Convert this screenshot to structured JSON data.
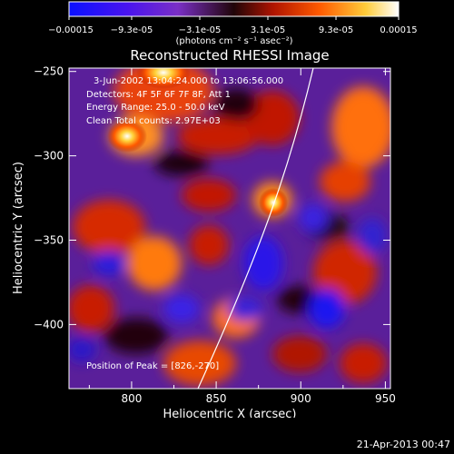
{
  "colorbar": {
    "tick_labels": [
      "-0.00015",
      "-9.3e-05",
      "-3.1e-05",
      "3.1e-05",
      "9.3e-05",
      "0.00015"
    ],
    "tick_values": [
      -0.00015,
      -9.3e-05,
      -3.1e-05,
      3.1e-05,
      9.3e-05,
      0.00015
    ],
    "units_label": "(photons cm⁻² s⁻¹ asec⁻²)",
    "colors": [
      "#0a10ff",
      "#7a2fc6",
      "#3a0d12",
      "#c01e00",
      "#ff6e00",
      "#ffd24a",
      "#ffffff"
    ]
  },
  "chart_data": {
    "type": "heatmap",
    "title": "Reconstructed RHESSI Image",
    "xlabel": "Heliocentric X (arcsec)",
    "ylabel": "Heliocentric Y (arcsec)",
    "xlim": [
      763,
      953
    ],
    "ylim": [
      -438,
      -248
    ],
    "x_ticks": [
      800,
      850,
      900,
      950
    ],
    "y_ticks": [
      -250,
      -300,
      -350,
      -400
    ],
    "annotations": {
      "time_range": "3-Jun-2002 13:04:24.000 to 13:06:56.000",
      "detectors": "Detectors: 4F 5F 6F 7F 8F, Att 1",
      "energy": "Energy Range: 25.0 - 50.0 keV",
      "clean": "Clean    Total counts: 2.97E+03",
      "peak": "Position of Peak = [826,-270]"
    },
    "limb_color": "#ffffff"
  },
  "timestamp": "21-Apr-2013 00:47"
}
